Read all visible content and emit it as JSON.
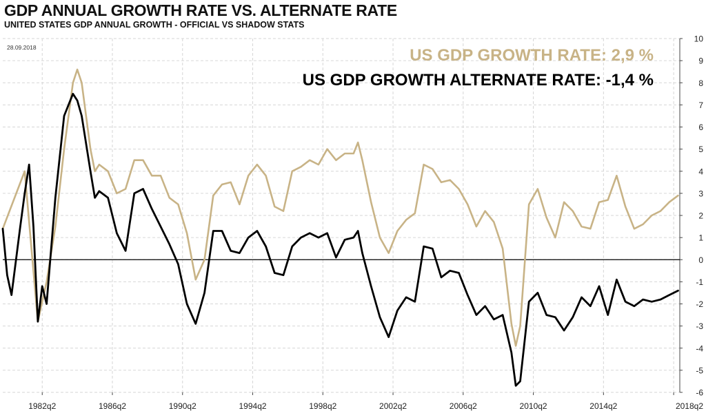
{
  "header": {
    "title": "GDP ANNUAL GROWTH RATE VS. ALTERNATE RATE",
    "subtitle": "UNITED STATES GDP ANNUAL GROWTH - OFFICIAL VS SHADOW  STATS"
  },
  "chart_data": {
    "type": "line",
    "date_label": "28.09.2018",
    "annotations": [
      "US  GDP  GROWTH  RATE: 2,9 %",
      "US GDP GROWTH ALTERNATE  RATE: -1,4 %"
    ],
    "x_tick_labels": [
      "1982q2",
      "1986q2",
      "1990q2",
      "1994q2",
      "1998q2",
      "2002q2",
      "2006q2",
      "2010q2",
      "2014q2",
      "2018q2"
    ],
    "x_ticks": [
      1982.25,
      1986.25,
      1990.25,
      1994.25,
      1998.25,
      2002.25,
      2006.25,
      2010.25,
      2014.25,
      2018.25
    ],
    "xlim": [
      1980.0,
      2018.6
    ],
    "ylim": [
      -6,
      10
    ],
    "y_ticks": [
      -6,
      -5,
      -4,
      -3,
      -2,
      -1,
      0,
      1,
      2,
      3,
      4,
      5,
      6,
      7,
      8,
      9,
      10
    ],
    "y_axis_position": "right",
    "grid": true,
    "zero_line": true,
    "colors": {
      "official": "#c8b386",
      "alternate": "#000000"
    },
    "series": [
      {
        "key": "official",
        "x": [
          1980.0,
          1981.25,
          1982.0,
          1982.5,
          1983.0,
          1983.5,
          1984.0,
          1984.25,
          1984.5,
          1985.0,
          1985.25,
          1985.5,
          1986.0,
          1986.5,
          1987.0,
          1987.5,
          1988.0,
          1988.5,
          1989.0,
          1989.5,
          1990.0,
          1990.5,
          1991.0,
          1991.5,
          1992.0,
          1992.5,
          1993.0,
          1993.5,
          1994.0,
          1994.5,
          1995.0,
          1995.5,
          1996.0,
          1996.5,
          1997.0,
          1997.5,
          1998.0,
          1998.5,
          1999.0,
          1999.5,
          2000.0,
          2000.25,
          2000.5,
          2001.0,
          2001.5,
          2002.0,
          2002.5,
          2003.0,
          2003.5,
          2004.0,
          2004.5,
          2005.0,
          2005.5,
          2006.0,
          2006.5,
          2007.0,
          2007.5,
          2008.0,
          2008.5,
          2009.0,
          2009.25,
          2009.5,
          2010.0,
          2010.5,
          2011.0,
          2011.5,
          2012.0,
          2012.5,
          2013.0,
          2013.5,
          2014.0,
          2014.5,
          2015.0,
          2015.5,
          2016.0,
          2016.5,
          2017.0,
          2017.5,
          2018.0,
          2018.5
        ],
        "y": [
          1.4,
          4.0,
          -2.8,
          -1.0,
          1.5,
          5.0,
          8.0,
          8.6,
          8.0,
          5.0,
          4.0,
          4.3,
          4.0,
          3.0,
          3.2,
          4.5,
          4.5,
          3.8,
          3.8,
          2.8,
          2.5,
          1.2,
          -0.9,
          0.0,
          2.9,
          3.4,
          3.5,
          2.5,
          3.8,
          4.3,
          3.8,
          2.4,
          2.2,
          4.0,
          4.2,
          4.5,
          4.3,
          5.0,
          4.5,
          4.8,
          4.8,
          5.3,
          4.5,
          2.6,
          1.0,
          0.3,
          1.3,
          1.8,
          2.1,
          4.3,
          4.1,
          3.5,
          3.6,
          3.2,
          2.5,
          1.5,
          2.2,
          1.7,
          0.5,
          -2.9,
          -3.9,
          -3.0,
          2.5,
          3.2,
          1.9,
          1.0,
          2.6,
          2.2,
          1.5,
          1.4,
          2.6,
          2.7,
          3.8,
          2.4,
          1.4,
          1.6,
          2.0,
          2.2,
          2.6,
          2.9
        ]
      },
      {
        "key": "alternate",
        "x": [
          1980.0,
          1980.25,
          1980.5,
          1981.0,
          1981.25,
          1981.5,
          1981.75,
          1982.0,
          1982.25,
          1982.5,
          1983.0,
          1983.5,
          1984.0,
          1984.25,
          1984.5,
          1985.0,
          1985.25,
          1985.5,
          1986.0,
          1986.5,
          1987.0,
          1987.5,
          1988.0,
          1988.5,
          1989.0,
          1989.5,
          1990.0,
          1990.5,
          1991.0,
          1991.5,
          1992.0,
          1992.5,
          1993.0,
          1993.5,
          1994.0,
          1994.5,
          1995.0,
          1995.5,
          1996.0,
          1996.5,
          1997.0,
          1997.5,
          1998.0,
          1998.5,
          1999.0,
          1999.5,
          2000.0,
          2000.25,
          2000.5,
          2001.0,
          2001.5,
          2002.0,
          2002.5,
          2003.0,
          2003.5,
          2004.0,
          2004.5,
          2005.0,
          2005.5,
          2006.0,
          2006.5,
          2007.0,
          2007.5,
          2008.0,
          2008.5,
          2009.0,
          2009.25,
          2009.5,
          2010.0,
          2010.5,
          2011.0,
          2011.5,
          2012.0,
          2012.5,
          2013.0,
          2013.5,
          2014.0,
          2014.5,
          2015.0,
          2015.5,
          2016.0,
          2016.5,
          2017.0,
          2017.5,
          2018.0,
          2018.5
        ],
        "y": [
          1.4,
          -0.7,
          -1.6,
          1.5,
          3.0,
          4.3,
          1.5,
          -2.8,
          -1.2,
          -2.0,
          2.8,
          6.5,
          7.5,
          7.2,
          6.5,
          4.0,
          2.8,
          3.1,
          2.8,
          1.2,
          0.4,
          3.0,
          3.2,
          2.3,
          1.5,
          0.7,
          -0.2,
          -2.0,
          -2.9,
          -1.5,
          1.3,
          1.3,
          0.4,
          0.3,
          1.0,
          1.3,
          0.6,
          -0.6,
          -0.7,
          0.6,
          1.0,
          1.2,
          1.0,
          1.2,
          0.1,
          0.9,
          1.0,
          1.3,
          0.3,
          -1.2,
          -2.6,
          -3.5,
          -2.3,
          -1.7,
          -1.9,
          0.6,
          0.5,
          -0.8,
          -0.5,
          -0.6,
          -1.6,
          -2.5,
          -2.1,
          -2.7,
          -2.5,
          -4.2,
          -5.7,
          -5.5,
          -1.9,
          -1.5,
          -2.5,
          -2.6,
          -3.2,
          -2.6,
          -1.7,
          -2.1,
          -1.2,
          -2.5,
          -0.9,
          -1.9,
          -2.1,
          -1.8,
          -1.9,
          -1.8,
          -1.6,
          -1.4
        ]
      }
    ]
  }
}
